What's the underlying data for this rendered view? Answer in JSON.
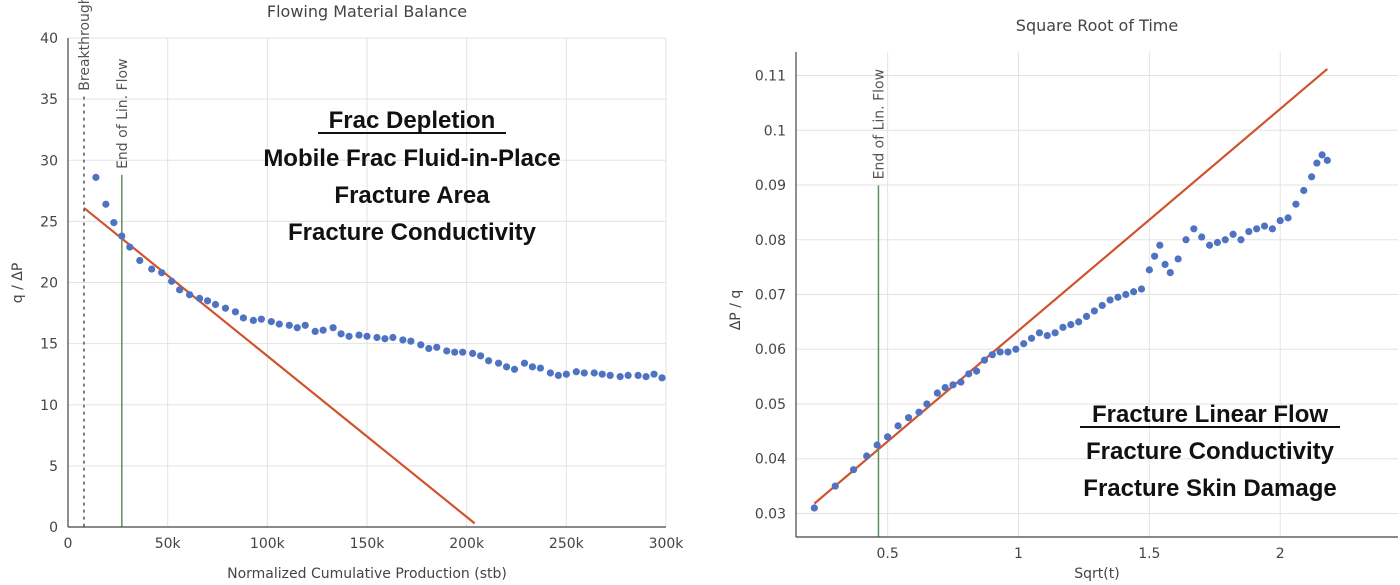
{
  "chart_data": [
    {
      "type": "scatter",
      "title": "Flowing Material Balance",
      "xlabel": "Normalized Cumulative Production (stb)",
      "ylabel": "q / ΔP",
      "xlim": [
        0,
        300000
      ],
      "ylim": [
        0,
        40
      ],
      "xticks": [
        0,
        50000,
        100000,
        150000,
        200000,
        250000,
        300000
      ],
      "xtick_labels": [
        "0",
        "50k",
        "100k",
        "150k",
        "200k",
        "250k",
        "300k"
      ],
      "yticks": [
        0,
        5,
        10,
        15,
        20,
        25,
        30,
        35,
        40
      ],
      "ytick_labels": [
        "0",
        "5",
        "10",
        "15",
        "20",
        "25",
        "30",
        "35",
        "40"
      ],
      "grid": true,
      "series_color": "#4f73c2",
      "line_color": "#d0532e",
      "series": [
        {
          "x": [
            14000,
            19000,
            23000,
            27000,
            31000,
            36000,
            42000,
            47000,
            52000,
            56000,
            61000,
            66000,
            70000,
            74000,
            79000,
            84000,
            88000,
            93000,
            97000,
            102000,
            106000,
            111000,
            115000,
            119000,
            124000,
            128000,
            133000,
            137000,
            141000,
            146000,
            150000,
            155000,
            159000,
            163000,
            168000,
            172000,
            177000,
            181000,
            185000,
            190000,
            194000,
            198000,
            203000,
            207000,
            211000,
            216000,
            220000,
            224000,
            229000,
            233000,
            237000,
            242000,
            246000,
            250000,
            255000,
            259000,
            264000,
            268000,
            272000,
            277000,
            281000,
            286000,
            290000,
            294000,
            298000
          ],
          "y": [
            28.6,
            26.4,
            24.9,
            23.8,
            22.9,
            21.8,
            21.1,
            20.8,
            20.1,
            19.4,
            19.0,
            18.7,
            18.5,
            18.2,
            17.9,
            17.6,
            17.1,
            16.9,
            17.0,
            16.8,
            16.6,
            16.5,
            16.3,
            16.5,
            16.0,
            16.1,
            16.3,
            15.8,
            15.6,
            15.7,
            15.6,
            15.5,
            15.4,
            15.5,
            15.3,
            15.2,
            14.9,
            14.6,
            14.7,
            14.4,
            14.3,
            14.3,
            14.2,
            14.0,
            13.6,
            13.4,
            13.1,
            12.9,
            13.4,
            13.1,
            13.0,
            12.6,
            12.4,
            12.5,
            12.7,
            12.6,
            12.6,
            12.5,
            12.4,
            12.3,
            12.4,
            12.4,
            12.3,
            12.5,
            12.2
          ]
        }
      ],
      "fit_line": {
        "x": [
          8000,
          204000
        ],
        "y": [
          26.1,
          0.3
        ]
      },
      "vlines": [
        {
          "x": 8000,
          "label": "Breakthrough",
          "style": "dotted",
          "color": "#555555"
        },
        {
          "x": 27000,
          "label": "End of Lin. Flow",
          "style": "solid",
          "color": "#5f8f5f"
        }
      ],
      "annotation": [
        "Frac Depletion",
        "Mobile Frac Fluid-in-Place",
        "Fracture Area",
        "Fracture Conductivity"
      ]
    },
    {
      "type": "scatter",
      "title": "Square Root of Time",
      "xlabel": "Sqrt(t)",
      "ylabel": "ΔP / q",
      "xlim": [
        0.15,
        2.45
      ],
      "ylim": [
        0.0257,
        0.1143
      ],
      "xticks": [
        0.5,
        1,
        1.5,
        2
      ],
      "xtick_labels": [
        "0.5",
        "1",
        "1.5",
        "2"
      ],
      "yticks": [
        0.03,
        0.04,
        0.05,
        0.06,
        0.07,
        0.08,
        0.09,
        0.1,
        0.11
      ],
      "ytick_labels": [
        "0.03",
        "0.04",
        "0.05",
        "0.06",
        "0.07",
        "0.08",
        "0.09",
        "0.1",
        "0.11"
      ],
      "grid": true,
      "series_color": "#4f73c2",
      "line_color": "#d0532e",
      "series": [
        {
          "x": [
            0.22,
            0.3,
            0.37,
            0.42,
            0.46,
            0.5,
            0.54,
            0.58,
            0.62,
            0.65,
            0.69,
            0.72,
            0.75,
            0.78,
            0.81,
            0.84,
            0.87,
            0.9,
            0.93,
            0.96,
            0.99,
            1.02,
            1.05,
            1.08,
            1.11,
            1.14,
            1.17,
            1.2,
            1.23,
            1.26,
            1.29,
            1.32,
            1.35,
            1.38,
            1.41,
            1.44,
            1.47,
            1.5,
            1.52,
            1.54,
            1.56,
            1.58,
            1.61,
            1.64,
            1.67,
            1.7,
            1.73,
            1.76,
            1.79,
            1.82,
            1.85,
            1.88,
            1.91,
            1.94,
            1.97,
            2.0,
            2.03,
            2.06,
            2.09,
            2.12,
            2.14,
            2.16,
            2.18
          ],
          "y": [
            0.031,
            0.035,
            0.038,
            0.0405,
            0.0425,
            0.044,
            0.046,
            0.0475,
            0.0485,
            0.05,
            0.052,
            0.053,
            0.0535,
            0.054,
            0.0555,
            0.056,
            0.058,
            0.059,
            0.0595,
            0.0595,
            0.06,
            0.061,
            0.062,
            0.063,
            0.0625,
            0.063,
            0.064,
            0.0645,
            0.065,
            0.066,
            0.067,
            0.068,
            0.069,
            0.0695,
            0.07,
            0.0705,
            0.071,
            0.0745,
            0.077,
            0.079,
            0.0755,
            0.074,
            0.0765,
            0.08,
            0.082,
            0.0805,
            0.079,
            0.0795,
            0.08,
            0.081,
            0.08,
            0.0815,
            0.082,
            0.0825,
            0.082,
            0.0835,
            0.084,
            0.0865,
            0.089,
            0.0915,
            0.094,
            0.0955,
            0.0945
          ]
        }
      ],
      "fit_line": {
        "x": [
          0.22,
          2.18
        ],
        "y": [
          0.0318,
          0.1112
        ]
      },
      "vlines": [
        {
          "x": 0.465,
          "label": "End of Lin. Flow",
          "style": "solid",
          "color": "#5f8f5f"
        }
      ],
      "annotation": [
        "Fracture Linear Flow",
        "Fracture Conductivity",
        "Fracture Skin Damage"
      ]
    }
  ]
}
